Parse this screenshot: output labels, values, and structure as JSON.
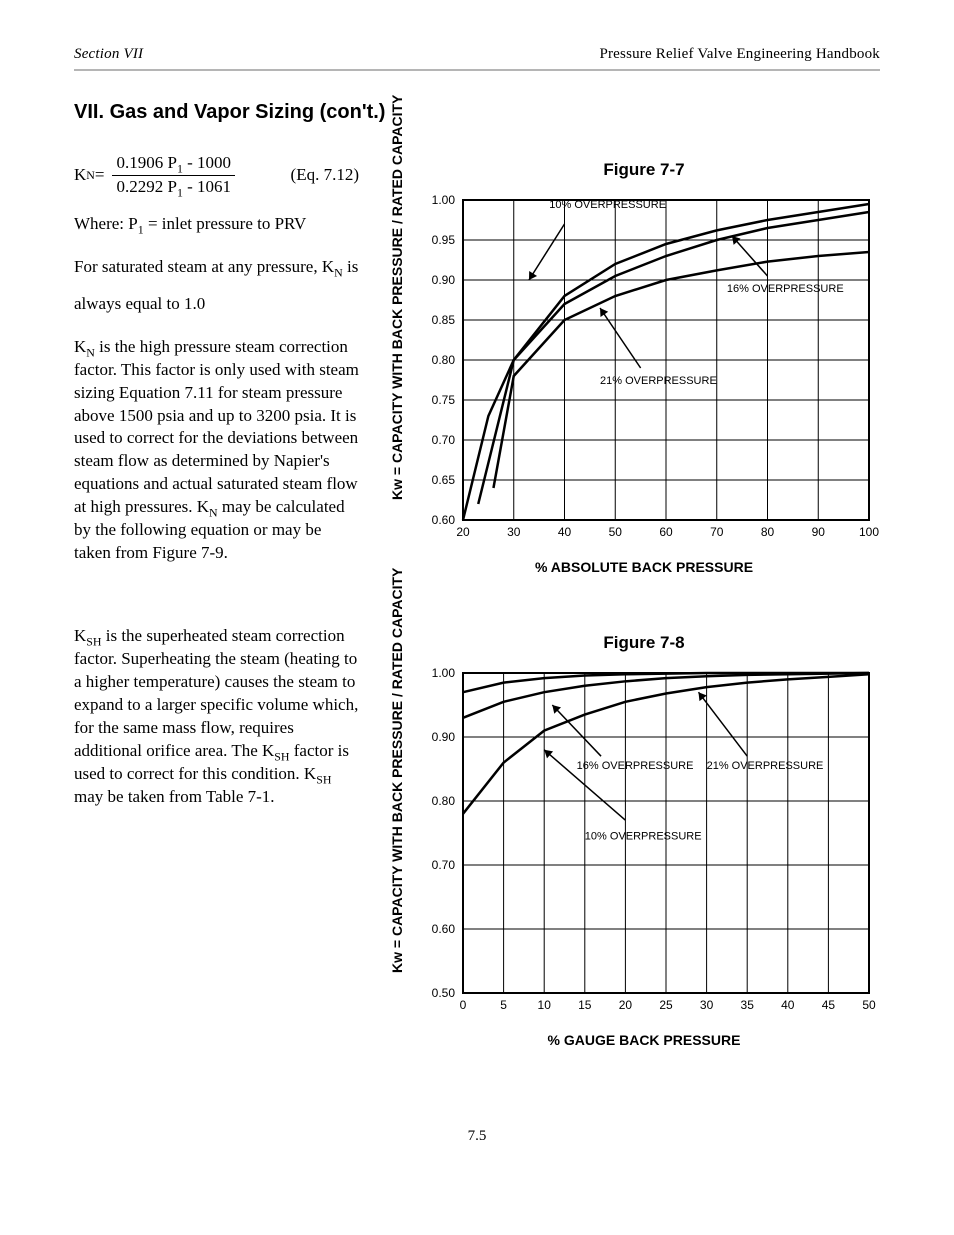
{
  "header": {
    "left": "Section VII",
    "right": "Pressure Relief Valve Engineering Handbook"
  },
  "section": {
    "title": "VII. Gas and Vapor Sizing (con't.)"
  },
  "paragraphs": {
    "p1_a": "For saturated steam at any pressure, K",
    "p1_n_sub": "N",
    "p1_b": " is",
    "p2": "always equal to 1.0",
    "p3_a": "K",
    "p3_b_sub": "N",
    "p3_c": " is the high pressure steam correction factor. This factor is only used with steam sizing Equation 7.11 for steam pressure above 1500 psia and up to 3200 psia. It is used to correct for the deviations between steam flow as determined by Napier's equations and actual saturated steam flow at high pressures. K",
    "p3_d_sub": "N",
    "p3_e": " may be calculated by the following equation or may be taken from Figure 7-9.",
    "p4_a": "K",
    "p4_b_sub": "SH",
    "p4_c": " is the superheated steam correction factor. Superheating the steam (heating to a higher temperature) causes the steam to expand to a larger specific volume which, for the same mass flow, requires additional orifice area. The K",
    "p4_d_sub": "SH",
    "p4_e": " factor is used to correct for this condition. K",
    "p4_f_sub": "SH",
    "p4_g": " may be taken from Table 7-1."
  },
  "equations": {
    "eq_knum": "7.12",
    "eq_a": "K",
    "eq_b_sub": "N",
    "eq_c": " = ",
    "eq_num_a": "0.1906 ",
    "eq_num_b": "P",
    "eq_num_c_sub": "1",
    "eq_num_d": " - 1000",
    "eq_den_a": "0.2292 ",
    "eq_den_b": "P",
    "eq_den_c_sub": "1",
    "eq_den_d": " - 1061",
    "where_a": "Where: P",
    "where_b_sub": "1",
    "where_c": " = inlet pressure to PRV"
  },
  "fig7": {
    "title": "Figure 7-7",
    "type": "line",
    "x_label": "% ABSOLUTE BACK PRESSURE",
    "y_label": "Kw = CAPACITY WITH BACK PRESSURE / RATED CAPACITY",
    "x_ticks": [
      "20",
      "30",
      "40",
      "50",
      "60",
      "70",
      "80",
      "90",
      "100"
    ],
    "y_ticks": [
      "0.60",
      "0.65",
      "0.70",
      "0.75",
      "0.80",
      "0.85",
      "0.90",
      "0.95",
      "1.00"
    ],
    "xlim": [
      20,
      100
    ],
    "ylim": [
      0.6,
      1.0
    ],
    "grid_color": "#000000",
    "line_color": "#000000",
    "background_color": "#ffffff",
    "callouts": {
      "a": "10% OVERPRESSURE",
      "b": "16% OVERPRESSURE",
      "c": "21% OVERPRESSURE"
    },
    "series": {
      "s10": [
        [
          20,
          0.6
        ],
        [
          25,
          0.73
        ],
        [
          30,
          0.8
        ],
        [
          40,
          0.87
        ],
        [
          50,
          0.905
        ],
        [
          60,
          0.93
        ],
        [
          70,
          0.95
        ],
        [
          80,
          0.965
        ],
        [
          90,
          0.975
        ],
        [
          100,
          0.985
        ]
      ],
      "s16": [
        [
          23,
          0.62
        ],
        [
          30,
          0.8
        ],
        [
          40,
          0.88
        ],
        [
          50,
          0.92
        ],
        [
          60,
          0.945
        ],
        [
          70,
          0.962
        ],
        [
          80,
          0.975
        ],
        [
          90,
          0.985
        ],
        [
          100,
          0.995
        ]
      ],
      "s21": [
        [
          26,
          0.64
        ],
        [
          30,
          0.78
        ],
        [
          40,
          0.85
        ],
        [
          50,
          0.88
        ],
        [
          60,
          0.9
        ],
        [
          70,
          0.912
        ],
        [
          80,
          0.923
        ],
        [
          90,
          0.93
        ],
        [
          100,
          0.935
        ]
      ]
    }
  },
  "fig8": {
    "title": "Figure 7-8",
    "type": "line",
    "x_label": "% GAUGE BACK PRESSURE",
    "y_label": "Kw = CAPACITY WITH BACK PRESSURE / RATED CAPACITY",
    "x_ticks": [
      "0",
      "5",
      "10",
      "15",
      "20",
      "25",
      "30",
      "35",
      "40",
      "45",
      "50"
    ],
    "y_ticks": [
      "0.50",
      "0.60",
      "0.70",
      "0.80",
      "0.90",
      "1.00"
    ],
    "xlim": [
      0,
      50
    ],
    "ylim": [
      0.5,
      1.0
    ],
    "grid_color": "#000000",
    "line_color": "#000000",
    "background_color": "#ffffff",
    "callouts": {
      "a": "10% OVERPRESSURE",
      "b": "16% OVERPRESSURE",
      "c": "21% OVERPRESSURE"
    },
    "series": {
      "s10": [
        [
          0,
          0.78
        ],
        [
          5,
          0.86
        ],
        [
          10,
          0.91
        ],
        [
          15,
          0.935
        ],
        [
          20,
          0.955
        ],
        [
          25,
          0.968
        ],
        [
          30,
          0.978
        ],
        [
          35,
          0.985
        ],
        [
          40,
          0.99
        ],
        [
          45,
          0.994
        ],
        [
          50,
          0.998
        ]
      ],
      "s16": [
        [
          0,
          0.93
        ],
        [
          5,
          0.955
        ],
        [
          10,
          0.97
        ],
        [
          15,
          0.98
        ],
        [
          20,
          0.987
        ],
        [
          25,
          0.992
        ],
        [
          30,
          0.995
        ],
        [
          35,
          0.997
        ],
        [
          40,
          0.998
        ],
        [
          45,
          0.999
        ],
        [
          50,
          1.0
        ]
      ],
      "s21": [
        [
          0,
          0.97
        ],
        [
          5,
          0.985
        ],
        [
          10,
          0.992
        ],
        [
          15,
          0.996
        ],
        [
          20,
          0.998
        ],
        [
          25,
          0.999
        ],
        [
          30,
          1.0
        ],
        [
          35,
          1.0
        ],
        [
          40,
          1.0
        ],
        [
          45,
          1.0
        ],
        [
          50,
          1.0
        ]
      ]
    }
  },
  "page_number": "7.5"
}
